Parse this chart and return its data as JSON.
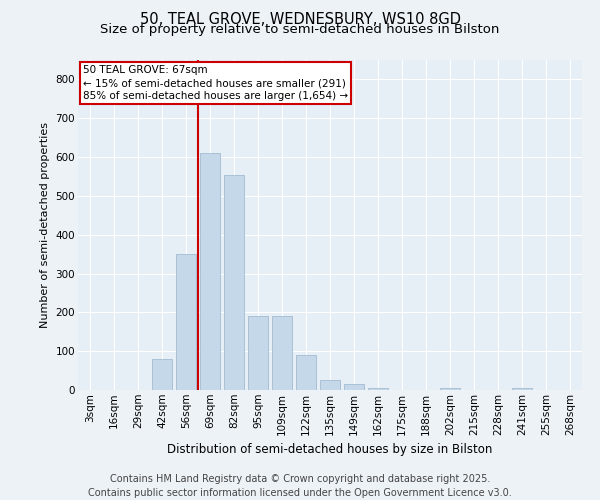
{
  "title_line1": "50, TEAL GROVE, WEDNESBURY, WS10 8GD",
  "title_line2": "Size of property relative to semi-detached houses in Bilston",
  "xlabel": "Distribution of semi-detached houses by size in Bilston",
  "ylabel": "Number of semi-detached properties",
  "categories": [
    "3sqm",
    "16sqm",
    "29sqm",
    "42sqm",
    "56sqm",
    "69sqm",
    "82sqm",
    "95sqm",
    "109sqm",
    "122sqm",
    "135sqm",
    "149sqm",
    "162sqm",
    "175sqm",
    "188sqm",
    "202sqm",
    "215sqm",
    "228sqm",
    "241sqm",
    "255sqm",
    "268sqm"
  ],
  "values": [
    0,
    0,
    0,
    80,
    350,
    610,
    555,
    190,
    190,
    90,
    25,
    15,
    5,
    0,
    0,
    5,
    0,
    0,
    5,
    0,
    0
  ],
  "bar_color": "#c5d8ea",
  "bar_edge_color": "#9ab5cc",
  "vline_x": 4.5,
  "annotation_line1": "50 TEAL GROVE: 67sqm",
  "annotation_line2": "← 15% of semi-detached houses are smaller (291)",
  "annotation_line3": "85% of semi-detached houses are larger (1,654) →",
  "annotation_facecolor": "#ffffff",
  "annotation_edgecolor": "#cc0000",
  "vline_color": "#cc0000",
  "yticks": [
    0,
    100,
    200,
    300,
    400,
    500,
    600,
    700,
    800
  ],
  "ylim": [
    0,
    850
  ],
  "footer_line1": "Contains HM Land Registry data © Crown copyright and database right 2025.",
  "footer_line2": "Contains public sector information licensed under the Open Government Licence v3.0.",
  "fig_bg": "#edf2f7",
  "plot_bg": "#e6eef6",
  "grid_color": "#ffffff",
  "title1_fontsize": 10.5,
  "title2_fontsize": 9.5,
  "xlabel_fontsize": 8.5,
  "ylabel_fontsize": 8,
  "tick_fontsize": 7.5,
  "annotation_fontsize": 7.5,
  "footer_fontsize": 7
}
